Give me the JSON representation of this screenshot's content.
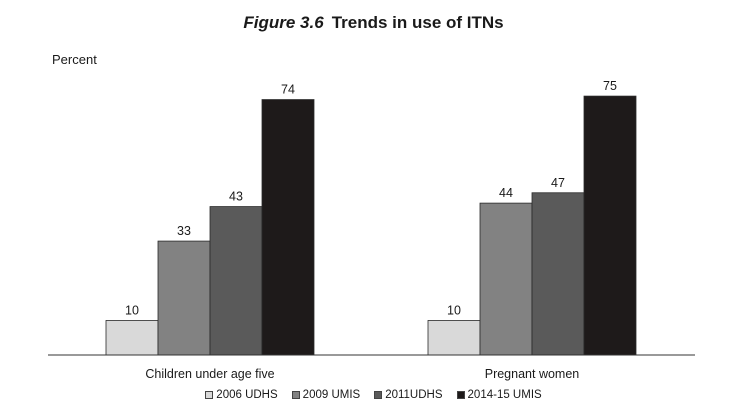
{
  "figure": {
    "number": "Figure 3.6",
    "title": "Trends in use of ITNs"
  },
  "chart_data": {
    "type": "bar",
    "ylabel": "Percent",
    "xlabel": "",
    "ylim": [
      0,
      80
    ],
    "grid": false,
    "legend_position": "bottom",
    "categories": [
      "Children under age five",
      "Pregnant women"
    ],
    "series": [
      {
        "name": "2006 UDHS",
        "values": [
          10,
          10
        ],
        "color": "#d9d9d9"
      },
      {
        "name": "2009 UMIS",
        "values": [
          33,
          44
        ],
        "color": "#828282"
      },
      {
        "name": "2011UDHS",
        "values": [
          43,
          47
        ],
        "color": "#5a5a5a"
      },
      {
        "name": "2014-15 UMIS",
        "values": [
          74,
          75
        ],
        "color": "#1e1a1a"
      }
    ]
  }
}
